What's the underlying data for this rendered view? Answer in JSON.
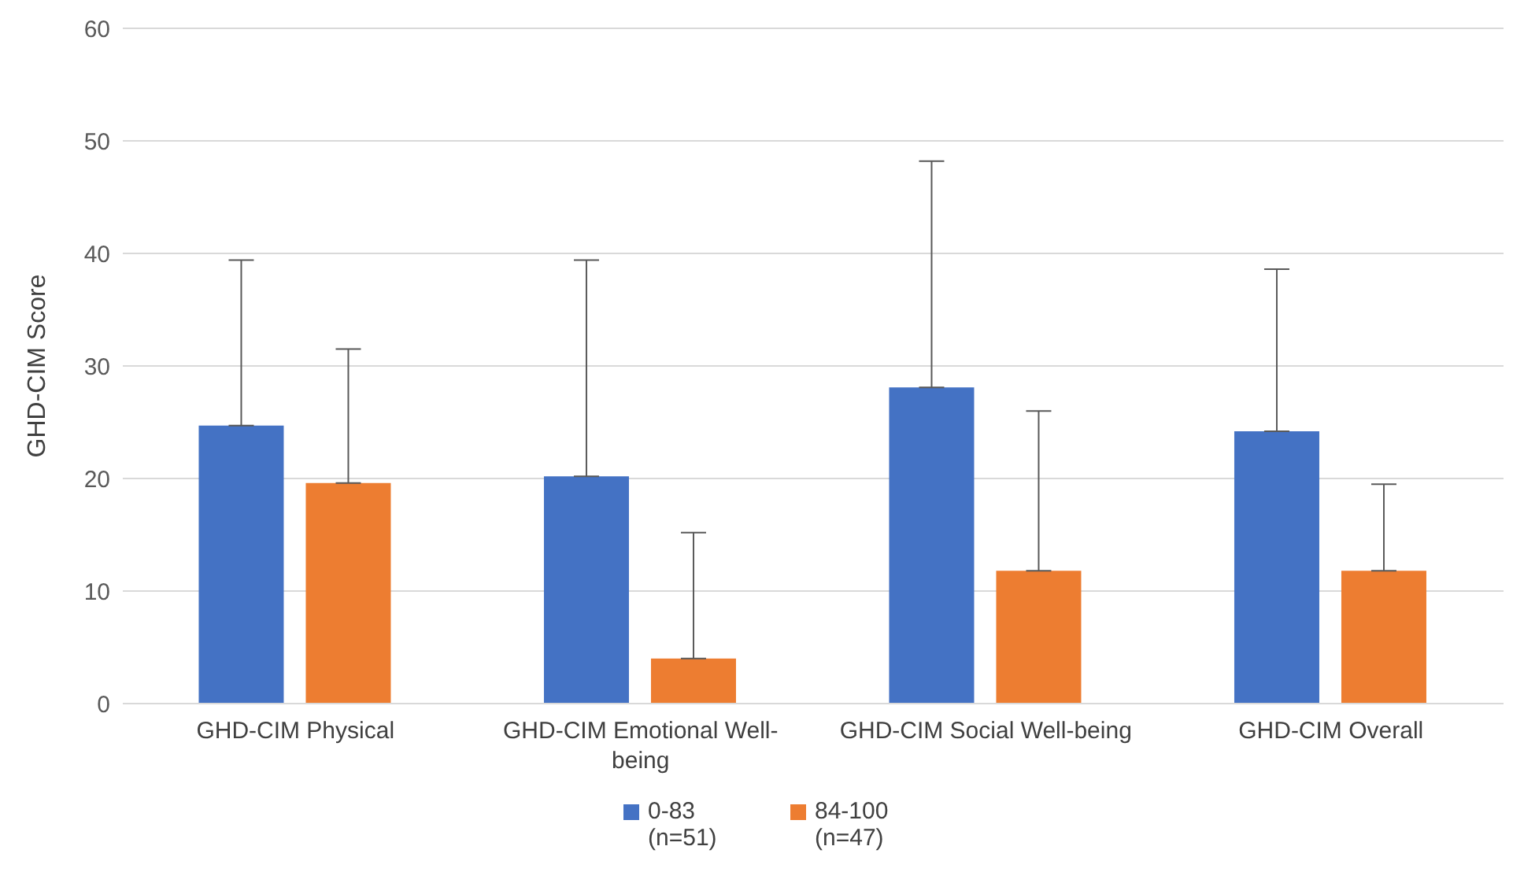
{
  "chart_data": {
    "type": "bar",
    "ylabel": "GHD-CIM Score",
    "categories": [
      "GHD-CIM Physical",
      "GHD-CIM Emotional Well-being",
      "GHD-CIM Social Well-being",
      "GHD-CIM Overall"
    ],
    "series": [
      {
        "name": "0-83 (n=51)",
        "color": "#4472c4",
        "values": [
          24.7,
          20.2,
          28.1,
          24.2
        ],
        "errors": [
          [
            24.7,
            39.4
          ],
          [
            20.2,
            39.4
          ],
          [
            28.1,
            48.2
          ],
          [
            24.2,
            38.6
          ]
        ]
      },
      {
        "name": "84-100 (n=47)",
        "color": "#ed7d31",
        "values": [
          19.6,
          4.0,
          11.8,
          11.8
        ],
        "errors": [
          [
            19.6,
            31.5
          ],
          [
            4.0,
            15.2
          ],
          [
            11.8,
            26.0
          ],
          [
            11.8,
            19.5
          ]
        ]
      }
    ],
    "ylim": [
      0,
      60
    ],
    "yticks": [
      0,
      10,
      20,
      30,
      40,
      50,
      60
    ],
    "grid": "y",
    "legend": "bottom"
  }
}
